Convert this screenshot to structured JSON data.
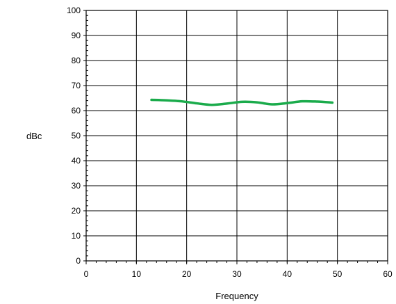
{
  "chart_data": {
    "type": "line",
    "xlabel": "Frequency",
    "ylabel": "dBc",
    "xlim": [
      0,
      60
    ],
    "ylim": [
      0,
      100
    ],
    "x_ticks": [
      0,
      10,
      20,
      30,
      40,
      50,
      60
    ],
    "y_ticks": [
      0,
      10,
      20,
      30,
      40,
      50,
      60,
      70,
      80,
      90,
      100
    ],
    "grid": true,
    "series": [
      {
        "color": "#1aab4b",
        "x": [
          13,
          16,
          19,
          22,
          25,
          28,
          31,
          34,
          37,
          40,
          43,
          46,
          49
        ],
        "y": [
          64.3,
          64.1,
          63.7,
          62.9,
          62.3,
          62.8,
          63.5,
          63.3,
          62.5,
          63.0,
          63.7,
          63.6,
          63.2
        ]
      }
    ]
  }
}
